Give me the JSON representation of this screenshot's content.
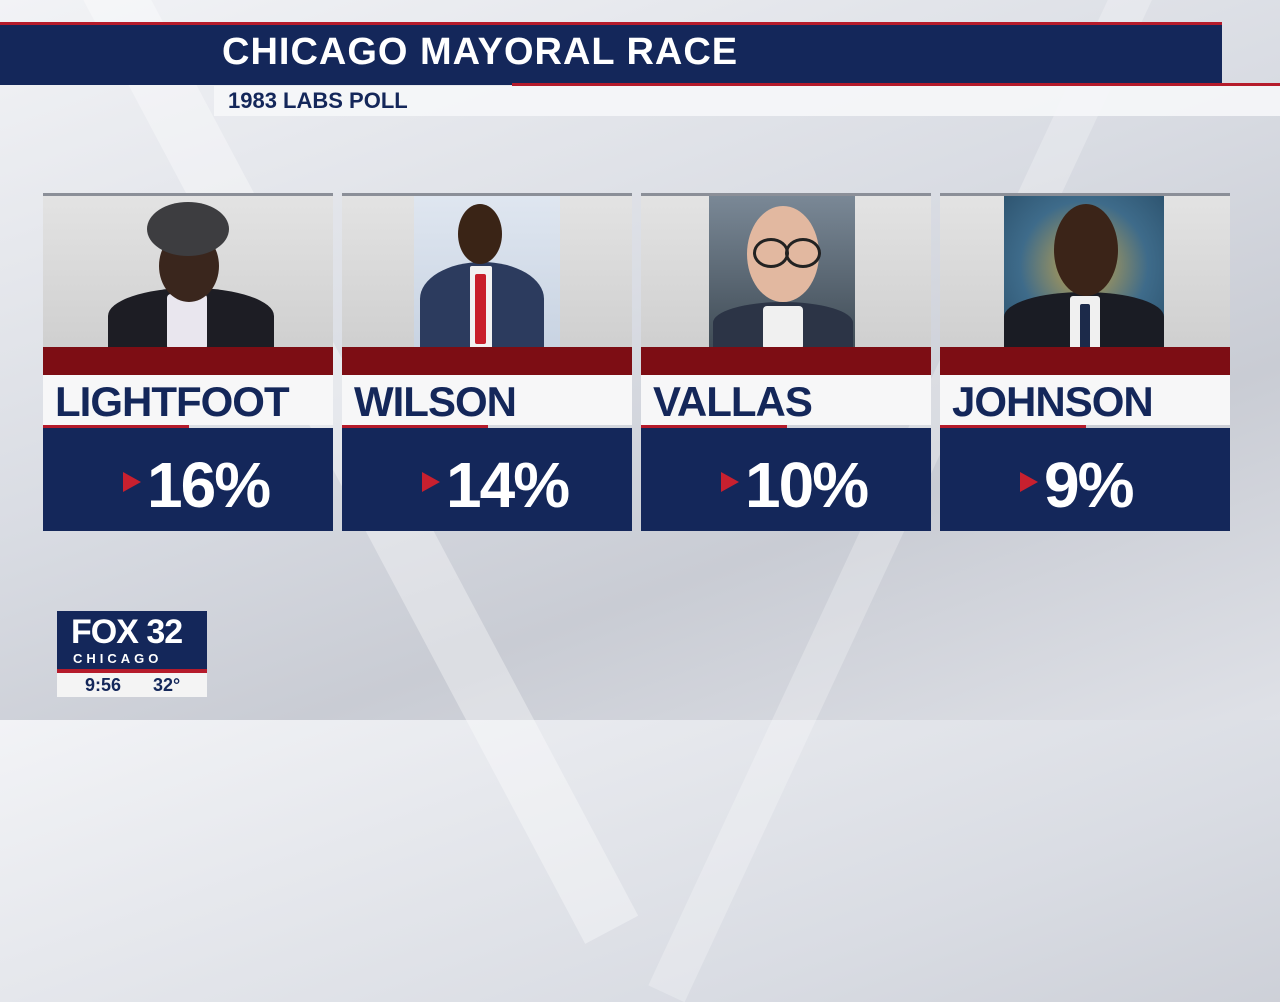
{
  "header": {
    "title": "CHICAGO MAYORAL RACE",
    "subtitle": "1983 LABS POLL"
  },
  "candidates": [
    {
      "name": "LIGHTFOOT",
      "percent": "16%"
    },
    {
      "name": "WILSON",
      "percent": "14%"
    },
    {
      "name": "VALLAS",
      "percent": "10%"
    },
    {
      "name": "JOHNSON",
      "percent": "9%"
    }
  ],
  "logo": {
    "brand": "FOX 32",
    "city": "CHICAGO",
    "time": "9:56",
    "temperature": "32°"
  },
  "colors": {
    "navy": "#14275a",
    "red": "#b51b2b",
    "dark_red": "#7d0d14"
  }
}
